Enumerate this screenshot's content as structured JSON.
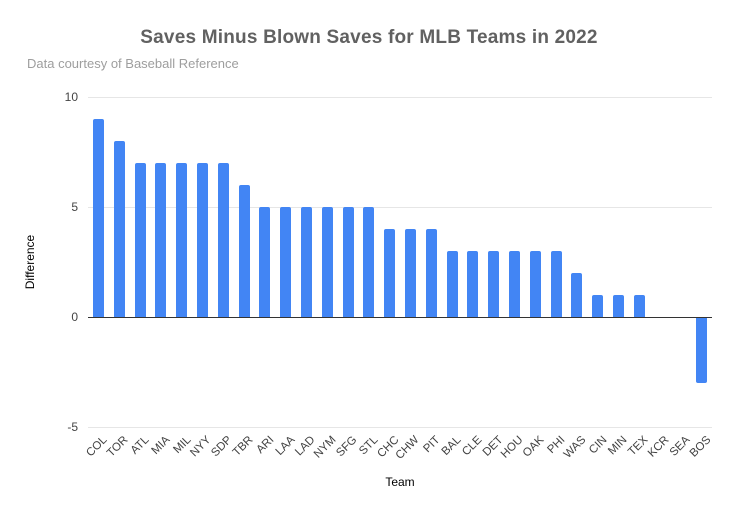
{
  "chart_data": {
    "type": "bar",
    "title": "Saves Minus Blown Saves for MLB Teams in 2022",
    "subtitle": "Data courtesy of Baseball Reference",
    "xlabel": "Team",
    "ylabel": "Difference",
    "categories": [
      "COL",
      "TOR",
      "ATL",
      "MIA",
      "MIL",
      "NYY",
      "SDP",
      "TBR",
      "ARI",
      "LAA",
      "LAD",
      "NYM",
      "SFG",
      "STL",
      "CHC",
      "CHW",
      "PIT",
      "BAL",
      "CLE",
      "DET",
      "HOU",
      "OAK",
      "PHI",
      "WAS",
      "CIN",
      "MIN",
      "TEX",
      "KCR",
      "SEA",
      "BOS"
    ],
    "values": [
      9,
      8,
      7,
      7,
      7,
      7,
      7,
      6,
      5,
      5,
      5,
      5,
      5,
      5,
      4,
      4,
      4,
      3,
      3,
      3,
      3,
      3,
      3,
      2,
      1,
      1,
      1,
      0,
      0,
      -3
    ],
    "ylim": [
      -5,
      10
    ],
    "yticks": [
      10,
      5,
      0,
      -5
    ],
    "grid": true,
    "legend": "none",
    "bar_color": "#4285f4",
    "gridline_color": "#e6e6e6",
    "axis_line_color": "#333333",
    "title_color": "#616161",
    "subtitle_color": "#9e9e9e"
  }
}
